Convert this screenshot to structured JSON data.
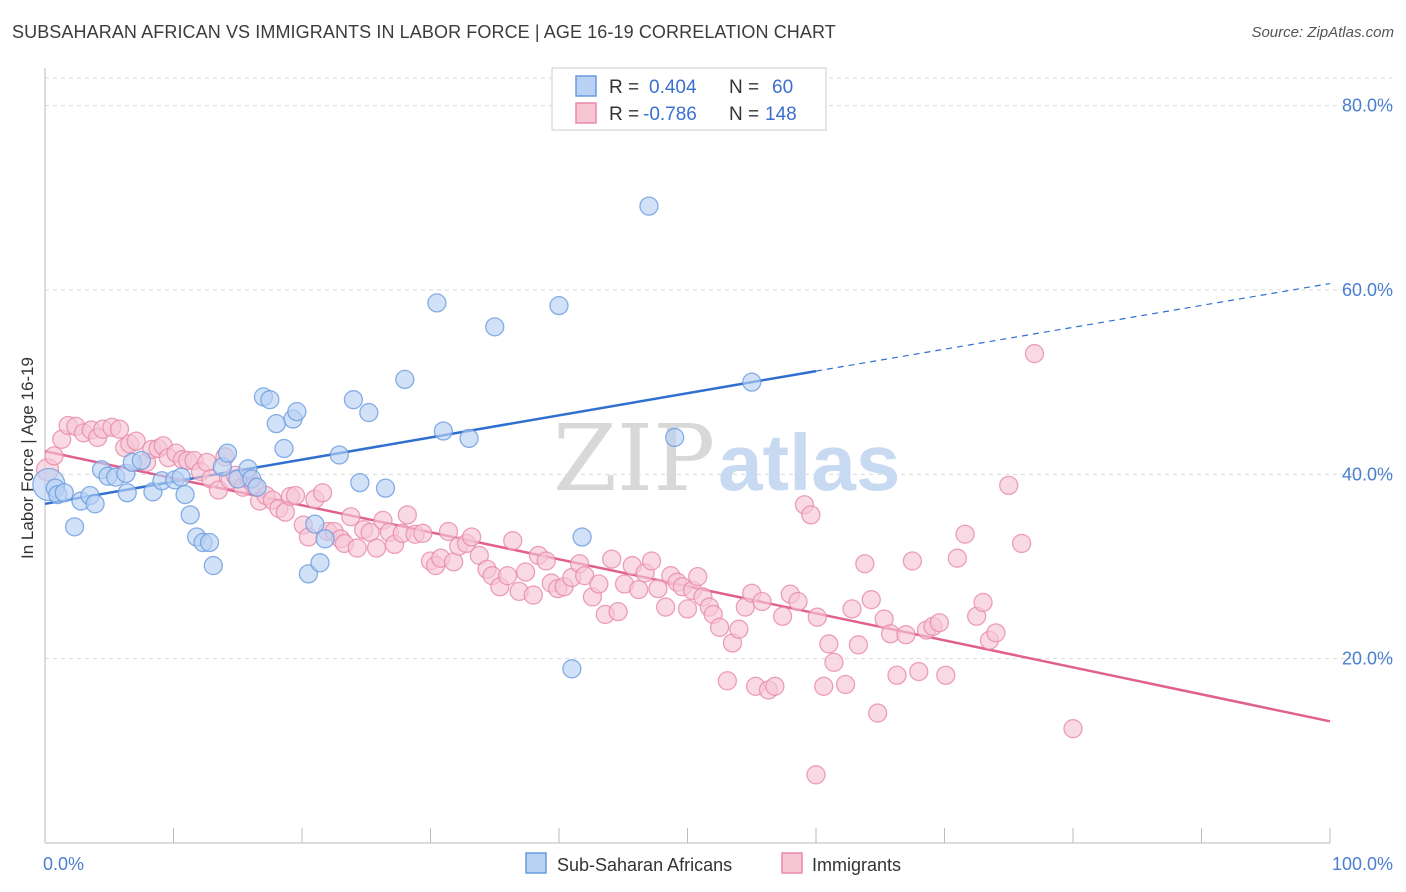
{
  "title": "SUBSAHARAN AFRICAN VS IMMIGRANTS IN LABOR FORCE | AGE 16-19 CORRELATION CHART",
  "source": "Source: ZipAtlas.com",
  "watermark": {
    "zip": "ZIP",
    "atlas": "atlas"
  },
  "colors": {
    "blue": "#6a9be0",
    "blue_fill": "#b9d1f3",
    "blue_line": "#2f6fcf",
    "pink": "#e98aa8",
    "pink_fill": "#f6c6d5",
    "pink_line": "#e0608e",
    "tick_text": "#4a7fd0"
  },
  "legend": {
    "rows": [
      {
        "r_label": "R =",
        "r_value": "0.404",
        "n_label": "N =",
        "n_value": "60"
      },
      {
        "r_label": "R =",
        "r_value": "-0.786",
        "n_label": "N =",
        "n_value": "148"
      }
    ]
  },
  "bottom_legend": [
    "Sub-Saharan Africans",
    "Immigrants"
  ],
  "chart_data": {
    "type": "scatter",
    "xlabel": "",
    "ylabel": "In Labor Force | Age 16-19",
    "xlim": [
      0,
      100
    ],
    "ylim": [
      0,
      83
    ],
    "x_tick_labels": [
      "0.0%",
      "100.0%"
    ],
    "y_ticks": [
      20,
      40,
      60,
      80
    ],
    "y_tick_labels": [
      "20.0%",
      "40.0%",
      "60.0%",
      "80.0%"
    ],
    "grid": true,
    "series": [
      {
        "name": "Sub-Saharan Africans",
        "trend": {
          "x0": 0,
          "y0": 36.8,
          "x1": 60,
          "y1": 51.2,
          "dash_to_x": 100,
          "dash_to_y": 60.7
        },
        "points": [
          [
            0.3,
            38.9
          ],
          [
            0.8,
            38.5
          ],
          [
            1.0,
            37.8
          ],
          [
            1.5,
            38.0
          ],
          [
            2.3,
            34.3
          ],
          [
            2.8,
            37.1
          ],
          [
            3.5,
            37.7
          ],
          [
            3.9,
            36.8
          ],
          [
            4.4,
            40.5
          ],
          [
            4.9,
            39.8
          ],
          [
            5.5,
            39.7
          ],
          [
            6.3,
            40.1
          ],
          [
            6.4,
            38.0
          ],
          [
            6.8,
            41.3
          ],
          [
            7.5,
            41.5
          ],
          [
            8.4,
            38.1
          ],
          [
            9.1,
            39.3
          ],
          [
            10.1,
            39.4
          ],
          [
            10.6,
            39.7
          ],
          [
            10.9,
            37.8
          ],
          [
            11.3,
            35.6
          ],
          [
            11.8,
            33.2
          ],
          [
            12.3,
            32.6
          ],
          [
            12.8,
            32.6
          ],
          [
            13.1,
            30.1
          ],
          [
            13.8,
            40.8
          ],
          [
            14.2,
            42.3
          ],
          [
            15.0,
            39.5
          ],
          [
            15.8,
            40.6
          ],
          [
            16.1,
            39.5
          ],
          [
            16.5,
            38.6
          ],
          [
            17.0,
            48.4
          ],
          [
            17.5,
            48.1
          ],
          [
            18.0,
            45.5
          ],
          [
            18.6,
            42.8
          ],
          [
            19.3,
            46.0
          ],
          [
            19.6,
            46.8
          ],
          [
            20.5,
            29.2
          ],
          [
            21.0,
            34.6
          ],
          [
            21.4,
            30.4
          ],
          [
            21.8,
            33.0
          ],
          [
            22.9,
            42.1
          ],
          [
            24.0,
            48.1
          ],
          [
            24.5,
            39.1
          ],
          [
            25.2,
            46.7
          ],
          [
            26.5,
            38.5
          ],
          [
            28.0,
            50.3
          ],
          [
            30.5,
            58.6
          ],
          [
            31.0,
            44.7
          ],
          [
            33.0,
            43.9
          ],
          [
            35.0,
            56.0
          ],
          [
            40.0,
            58.3
          ],
          [
            41.0,
            18.9
          ],
          [
            41.8,
            33.2
          ],
          [
            47.0,
            69.1
          ],
          [
            49.0,
            44.0
          ],
          [
            55.0,
            50.0
          ]
        ]
      },
      {
        "name": "Immigrants",
        "trend": {
          "x0": 0,
          "y0": 42.5,
          "x1": 100,
          "y1": 13.2
        },
        "points": [
          [
            0.2,
            40.5
          ],
          [
            0.7,
            42.0
          ],
          [
            1.3,
            43.8
          ],
          [
            1.8,
            45.3
          ],
          [
            2.4,
            45.2
          ],
          [
            3.0,
            44.5
          ],
          [
            3.6,
            44.8
          ],
          [
            4.1,
            44.0
          ],
          [
            4.5,
            44.9
          ],
          [
            5.2,
            45.1
          ],
          [
            5.8,
            44.9
          ],
          [
            6.2,
            42.9
          ],
          [
            6.6,
            43.3
          ],
          [
            7.1,
            43.6
          ],
          [
            7.9,
            41.3
          ],
          [
            8.3,
            42.7
          ],
          [
            8.8,
            42.8
          ],
          [
            9.2,
            43.1
          ],
          [
            9.6,
            41.8
          ],
          [
            10.2,
            42.3
          ],
          [
            10.7,
            41.6
          ],
          [
            11.1,
            41.5
          ],
          [
            11.6,
            41.5
          ],
          [
            12.1,
            40.3
          ],
          [
            12.6,
            41.3
          ],
          [
            12.9,
            39.5
          ],
          [
            13.5,
            38.3
          ],
          [
            14.0,
            41.9
          ],
          [
            14.4,
            39.4
          ],
          [
            14.8,
            39.9
          ],
          [
            15.4,
            38.6
          ],
          [
            15.9,
            39.4
          ],
          [
            16.3,
            38.7
          ],
          [
            16.7,
            37.1
          ],
          [
            17.2,
            37.7
          ],
          [
            17.7,
            37.2
          ],
          [
            18.2,
            36.3
          ],
          [
            18.7,
            35.9
          ],
          [
            19.1,
            37.6
          ],
          [
            19.5,
            37.7
          ],
          [
            20.1,
            34.5
          ],
          [
            20.5,
            33.2
          ],
          [
            21.0,
            37.3
          ],
          [
            21.6,
            38.0
          ],
          [
            22.0,
            33.8
          ],
          [
            22.5,
            33.8
          ],
          [
            23.0,
            33.0
          ],
          [
            23.3,
            32.5
          ],
          [
            23.8,
            35.4
          ],
          [
            24.3,
            32.0
          ],
          [
            24.8,
            34.0
          ],
          [
            25.3,
            33.7
          ],
          [
            25.8,
            32.0
          ],
          [
            26.3,
            35.0
          ],
          [
            26.8,
            33.7
          ],
          [
            27.2,
            32.4
          ],
          [
            27.8,
            33.6
          ],
          [
            28.2,
            35.6
          ],
          [
            28.8,
            33.5
          ],
          [
            29.4,
            33.6
          ],
          [
            30.0,
            30.6
          ],
          [
            30.4,
            30.1
          ],
          [
            30.8,
            30.9
          ],
          [
            31.4,
            33.8
          ],
          [
            31.8,
            30.5
          ],
          [
            32.2,
            32.2
          ],
          [
            32.8,
            32.5
          ],
          [
            33.2,
            33.2
          ],
          [
            33.8,
            31.2
          ],
          [
            34.4,
            29.7
          ],
          [
            34.8,
            29.0
          ],
          [
            35.4,
            27.8
          ],
          [
            36.0,
            29.0
          ],
          [
            36.4,
            32.8
          ],
          [
            36.9,
            27.3
          ],
          [
            37.4,
            29.4
          ],
          [
            38.0,
            26.9
          ],
          [
            38.4,
            31.2
          ],
          [
            39.0,
            30.6
          ],
          [
            39.4,
            28.2
          ],
          [
            39.9,
            27.6
          ],
          [
            40.4,
            27.8
          ],
          [
            41.0,
            28.8
          ],
          [
            41.6,
            30.3
          ],
          [
            42.0,
            29.0
          ],
          [
            42.6,
            26.7
          ],
          [
            43.1,
            28.1
          ],
          [
            43.6,
            24.8
          ],
          [
            44.1,
            30.8
          ],
          [
            44.6,
            25.1
          ],
          [
            45.1,
            28.1
          ],
          [
            45.7,
            30.1
          ],
          [
            46.2,
            27.5
          ],
          [
            46.7,
            29.3
          ],
          [
            47.2,
            30.6
          ],
          [
            47.7,
            27.6
          ],
          [
            48.3,
            25.6
          ],
          [
            48.7,
            29.0
          ],
          [
            49.2,
            28.3
          ],
          [
            49.6,
            27.8
          ],
          [
            50.0,
            25.4
          ],
          [
            50.4,
            27.4
          ],
          [
            50.8,
            28.9
          ],
          [
            51.2,
            26.7
          ],
          [
            51.7,
            25.6
          ],
          [
            52.0,
            24.8
          ],
          [
            52.5,
            23.4
          ],
          [
            53.1,
            17.6
          ],
          [
            53.5,
            21.7
          ],
          [
            54.0,
            23.2
          ],
          [
            54.5,
            25.6
          ],
          [
            55.0,
            27.1
          ],
          [
            55.3,
            17.0
          ],
          [
            55.8,
            26.2
          ],
          [
            56.3,
            16.6
          ],
          [
            56.8,
            17.0
          ],
          [
            57.4,
            24.6
          ],
          [
            58.0,
            27.0
          ],
          [
            58.6,
            26.2
          ],
          [
            59.1,
            36.7
          ],
          [
            59.6,
            35.6
          ],
          [
            60.1,
            24.5
          ],
          [
            60.6,
            17.0
          ],
          [
            61.0,
            21.6
          ],
          [
            61.4,
            19.6
          ],
          [
            62.3,
            17.2
          ],
          [
            62.8,
            25.4
          ],
          [
            63.3,
            21.5
          ],
          [
            63.8,
            30.3
          ],
          [
            64.3,
            26.4
          ],
          [
            64.8,
            14.1
          ],
          [
            65.3,
            24.3
          ],
          [
            65.8,
            22.7
          ],
          [
            66.3,
            18.2
          ],
          [
            67.0,
            22.6
          ],
          [
            67.5,
            30.6
          ],
          [
            68.0,
            18.6
          ],
          [
            68.6,
            23.1
          ],
          [
            69.1,
            23.5
          ],
          [
            69.6,
            23.9
          ],
          [
            70.1,
            18.2
          ],
          [
            71.0,
            30.9
          ],
          [
            71.6,
            33.5
          ],
          [
            72.5,
            24.6
          ],
          [
            73.0,
            26.1
          ],
          [
            73.5,
            22.0
          ],
          [
            74.0,
            22.8
          ],
          [
            75.0,
            38.8
          ],
          [
            76.0,
            32.5
          ],
          [
            77.0,
            53.1
          ],
          [
            80.0,
            12.4
          ],
          [
            60.0,
            7.4
          ]
        ]
      }
    ]
  }
}
